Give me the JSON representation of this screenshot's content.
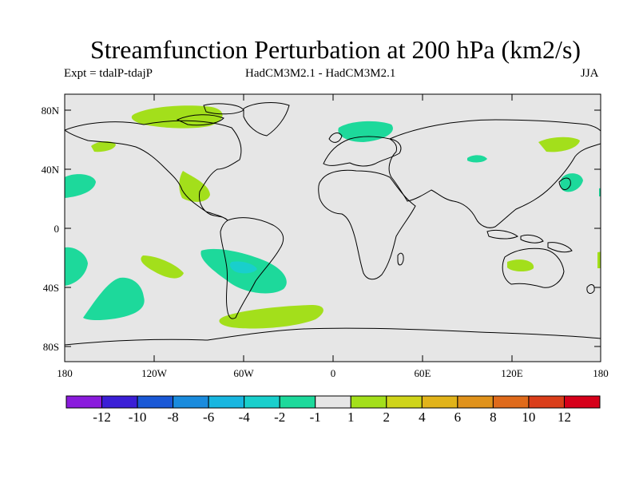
{
  "title": "Streamfunction Perturbation at 200 hPa (km2/s)",
  "expt_label": "Expt = tdalP-tdajP",
  "models_label": "HadCM3M2.1 - HadCM3M2.1",
  "season_label": "JJA",
  "axes": {
    "lat_ticks": [
      "80N",
      "40N",
      "0",
      "40S",
      "80S"
    ],
    "lon_ticks": [
      "180",
      "120W",
      "60W",
      "0",
      "60E",
      "120E",
      "180"
    ]
  },
  "colorbar": {
    "colors": [
      "#8a1bdc",
      "#3b1fd6",
      "#1a58d6",
      "#1a8bdd",
      "#18b6e0",
      "#19cfcc",
      "#1dd99b",
      "#e6e6e6",
      "#a3df1b",
      "#cfd41a",
      "#e1b31a",
      "#e0921b",
      "#df6a1b",
      "#da3e1a",
      "#d6001a"
    ],
    "labels": [
      "-12",
      "-10",
      "-8",
      "-6",
      "-4",
      "-2",
      "-1",
      "1",
      "2",
      "4",
      "6",
      "8",
      "10",
      "12"
    ]
  },
  "map_colors": {
    "background": "#e6e6e6",
    "neg_1": "#1dd99b",
    "neg_2": "#19cfcc",
    "pos_1": "#a3df1b"
  }
}
